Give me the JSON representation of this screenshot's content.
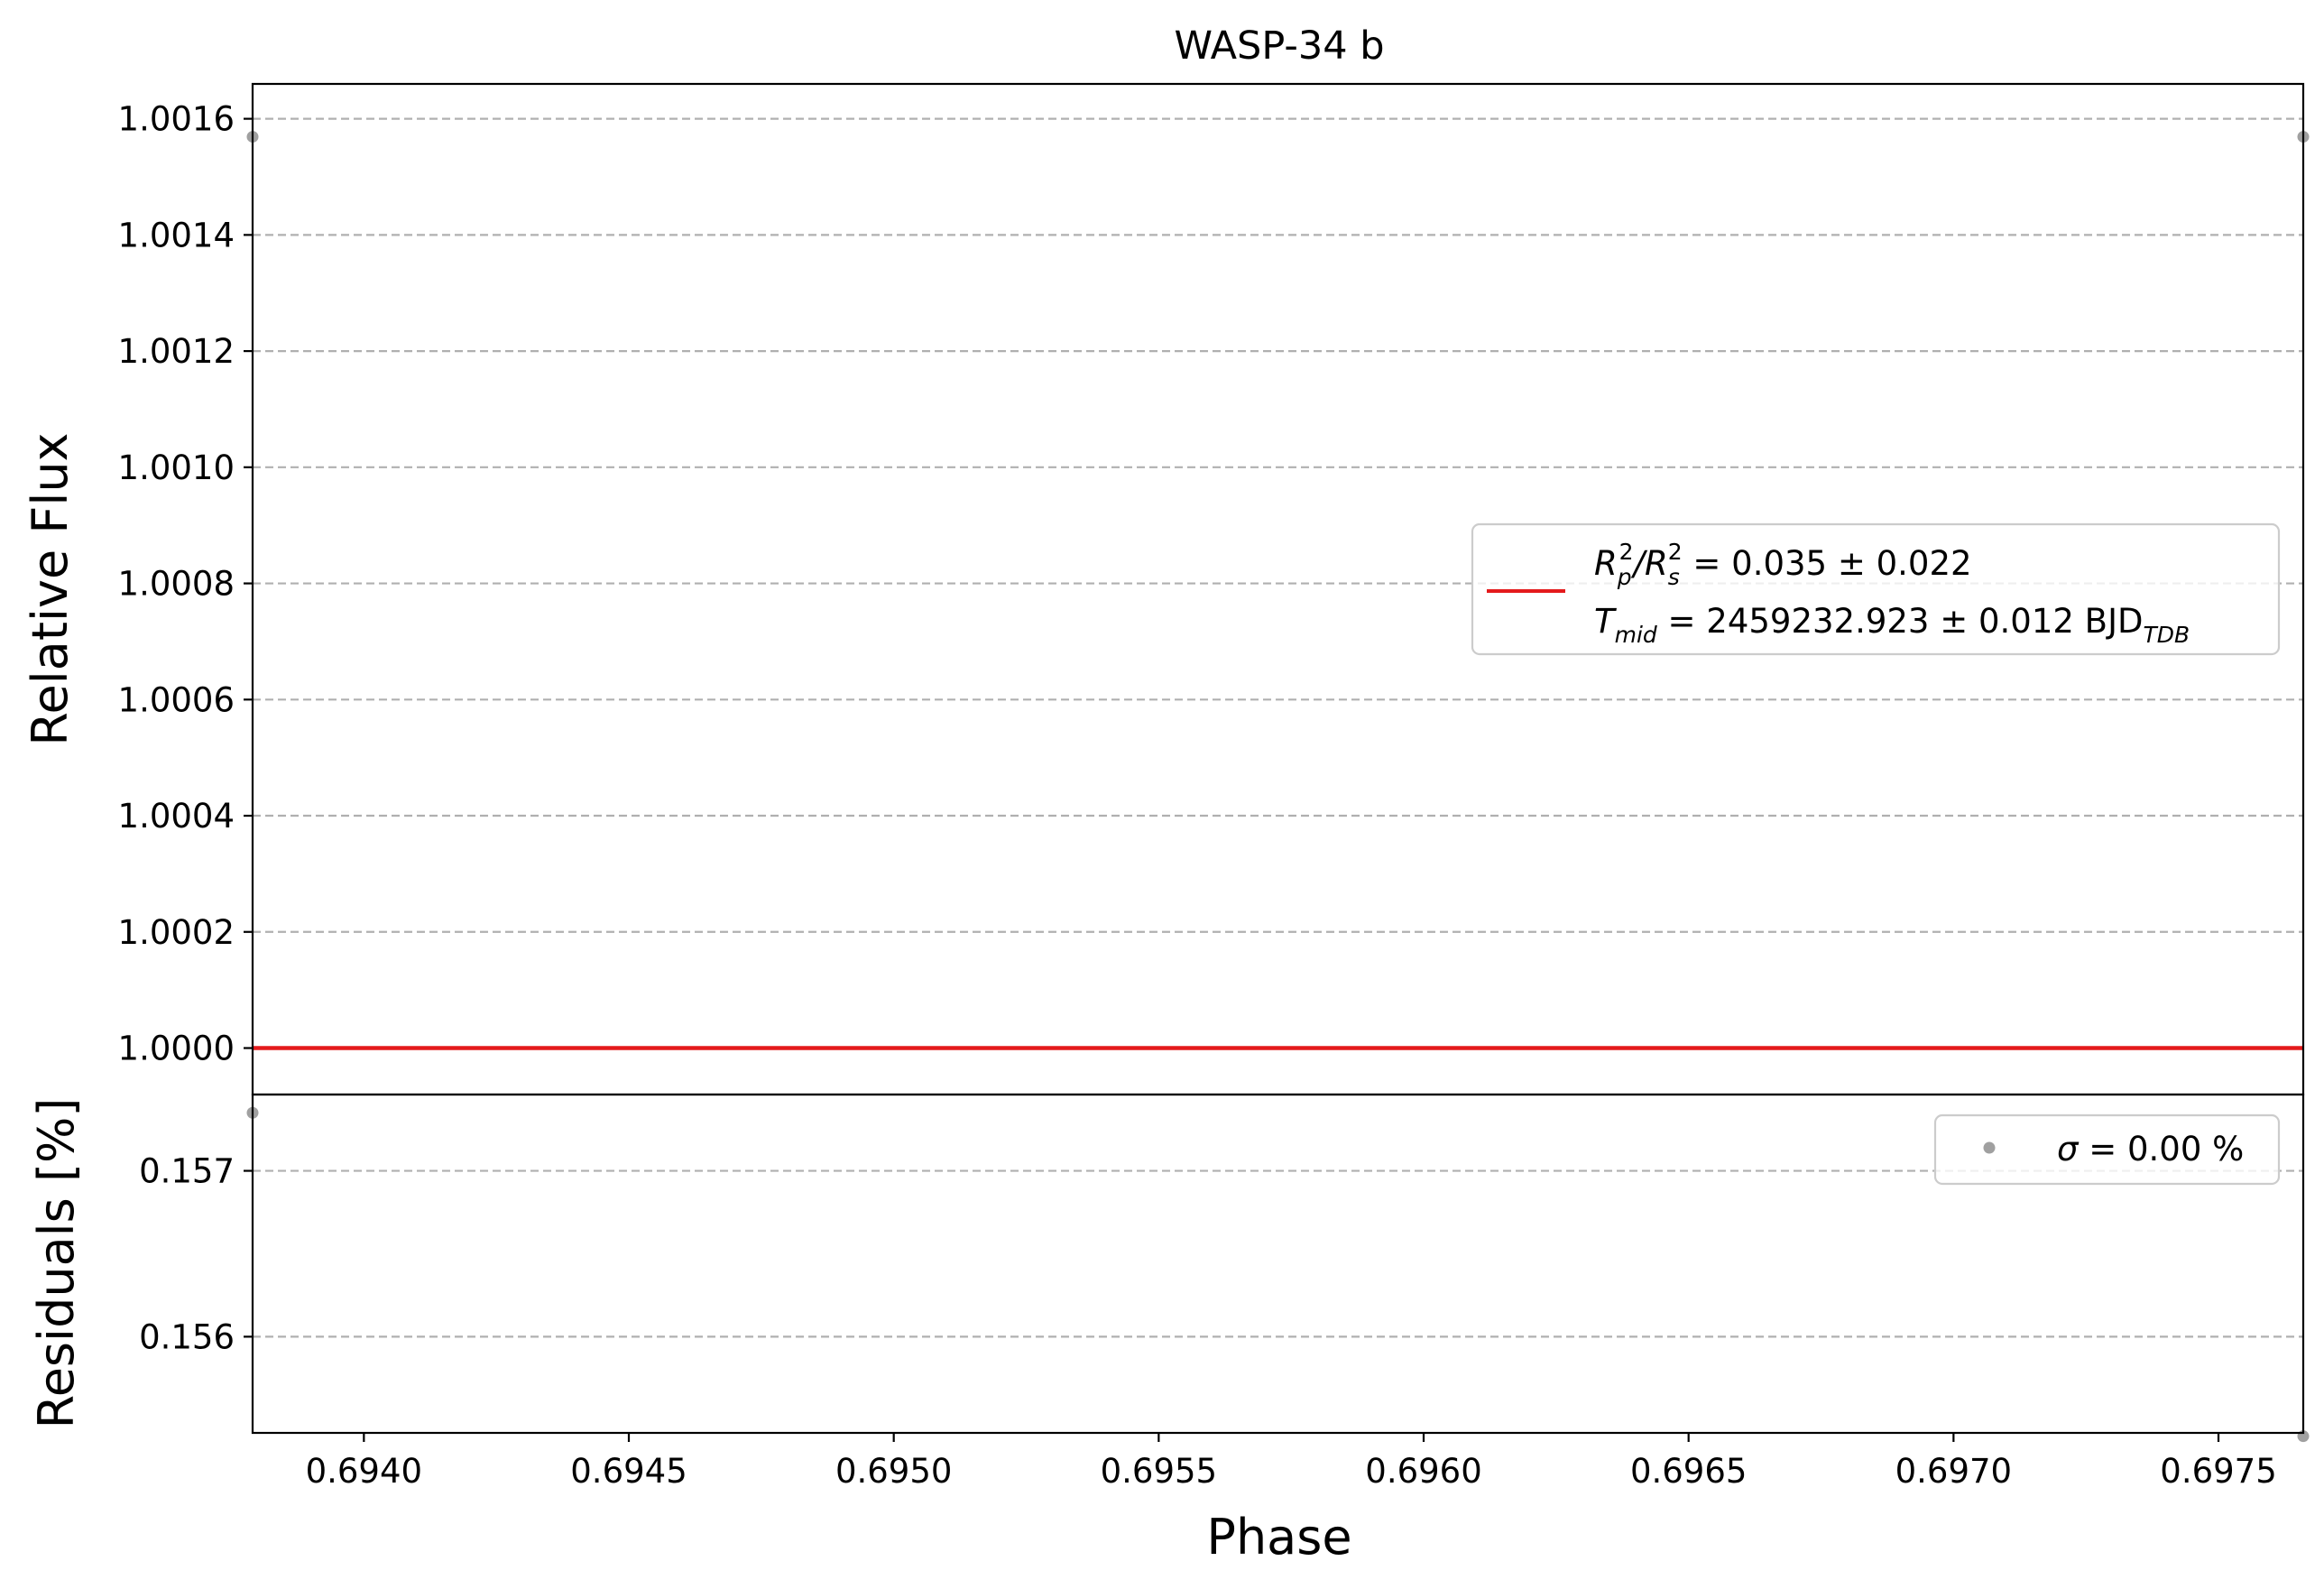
{
  "chart_data": [
    {
      "type": "line",
      "title": "WASP-34 b",
      "xlabel": "",
      "ylabel": "Relative Flux",
      "xlim": [
        0.69379,
        0.69766
      ],
      "ylim": [
        0.99992,
        1.00166
      ],
      "grid": true,
      "y_ticks": [
        1.0,
        1.0002,
        1.0004,
        1.0006,
        1.0008,
        1.001,
        1.0012,
        1.0014,
        1.0016
      ],
      "y_tick_labels": [
        "1.0000",
        "1.0002",
        "1.0004",
        "1.0006",
        "1.0008",
        "1.0010",
        "1.0012",
        "1.0014",
        "1.0016"
      ],
      "series": [
        {
          "kind": "scatter",
          "color": "#a0a0a0",
          "x": [
            0.69379,
            0.69766
          ],
          "y": [
            1.001569,
            1.001569
          ]
        },
        {
          "kind": "line",
          "color": "#e41a1c",
          "x": [
            0.69379,
            0.69766
          ],
          "y": [
            1.0,
            1.0
          ]
        }
      ],
      "legend": {
        "placement": "right",
        "line1_pre": "R",
        "line1_sub1": "p",
        "line1_sup1": "2",
        "line1_mid": "/R",
        "line1_sub2": "s",
        "line1_sup2": "2",
        "line1_post": " = 0.035 ± 0.022",
        "line2_pre": "T",
        "line2_sub": "mid",
        "line2_mid": " = 2459232.923 ± 0.012 BJD",
        "line2_post_sub": "TDB"
      }
    },
    {
      "type": "scatter",
      "xlabel": "Phase",
      "ylabel": "Residuals [%]",
      "xlim": [
        0.69379,
        0.69766
      ],
      "ylim": [
        0.15542,
        0.15746
      ],
      "grid": true,
      "x_ticks": [
        0.694,
        0.6945,
        0.695,
        0.6955,
        0.696,
        0.6965,
        0.697,
        0.6975
      ],
      "x_tick_labels": [
        "0.6940",
        "0.6945",
        "0.6950",
        "0.6955",
        "0.6960",
        "0.6965",
        "0.6970",
        "0.6975"
      ],
      "y_ticks": [
        0.156,
        0.157
      ],
      "y_tick_labels": [
        "0.156",
        "0.157"
      ],
      "series": [
        {
          "kind": "scatter",
          "color": "#a0a0a0",
          "x": [
            0.69379,
            0.69766
          ],
          "y": [
            0.15735,
            0.1554
          ]
        }
      ],
      "legend": {
        "placement": "upper right",
        "sigma_symbol": "σ",
        "sigma_text": " = 0.00 %"
      }
    }
  ]
}
